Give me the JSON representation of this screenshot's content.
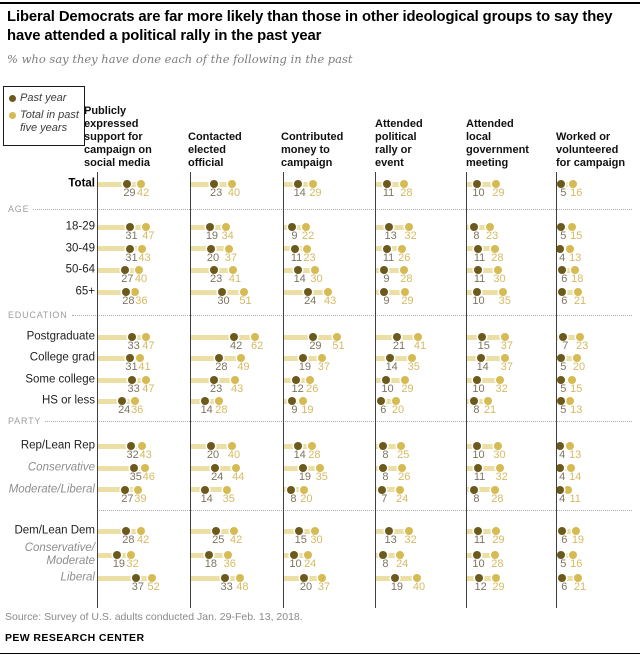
{
  "title": "Liberal Democrats are far more likely than those in other ideological groups to say they have attended a political rally in the past year",
  "subtitle": "% who say they have done each of the following in the past",
  "legend": {
    "past_year_label": "Past year",
    "past_five_label": "Total in past five years"
  },
  "colors": {
    "past_year_dot": "#6b5a1b",
    "past_five_dot": "#d6ba52",
    "range_bar": "#ecdfa6",
    "past_year_value_text": "#7e7560",
    "past_five_value_text": "#d5ba62",
    "axis": "#3f3f3f"
  },
  "chart_data": {
    "type": "scatter",
    "subtype": "dumbbell-dot-plot",
    "unit": "%",
    "series": [
      "Past year",
      "Total in past five years"
    ],
    "columns": [
      {
        "label": "Publicly expressed support for campaign on social media",
        "lines": [
          "Publicly",
          "expressed",
          "support for",
          "campaign on",
          "social media"
        ]
      },
      {
        "label": "Contacted elected official",
        "lines": [
          "Contacted",
          "elected",
          "official"
        ]
      },
      {
        "label": "Contributed money to campaign",
        "lines": [
          "Contributed",
          "money to",
          "campaign"
        ]
      },
      {
        "label": "Attended political rally or event",
        "lines": [
          "Attended",
          "political",
          "rally or",
          "event"
        ]
      },
      {
        "label": "Attended local government meeting",
        "lines": [
          "Attended",
          "local",
          "government",
          "meeting"
        ]
      },
      {
        "label": "Worked or volunteered for campaign",
        "lines": [
          "Worked or",
          "volunteered",
          "for campaign"
        ]
      }
    ],
    "xlim": [
      0,
      70
    ],
    "rows": [
      {
        "label": "Total",
        "style": "bold",
        "values": [
          [
            29,
            42
          ],
          [
            23,
            40
          ],
          [
            14,
            29
          ],
          [
            11,
            28
          ],
          [
            10,
            29
          ],
          [
            5,
            16
          ]
        ]
      },
      {
        "section": "AGE"
      },
      {
        "label": "18-29",
        "style": "plain",
        "values": [
          [
            31,
            47
          ],
          [
            19,
            34
          ],
          [
            9,
            22
          ],
          [
            13,
            32
          ],
          [
            8,
            23
          ],
          [
            5,
            15
          ]
        ]
      },
      {
        "label": "30-49",
        "style": "plain",
        "values": [
          [
            31,
            43
          ],
          [
            20,
            37
          ],
          [
            11,
            23
          ],
          [
            11,
            26
          ],
          [
            11,
            28
          ],
          [
            4,
            13
          ]
        ]
      },
      {
        "label": "50-64",
        "style": "plain",
        "values": [
          [
            27,
            40
          ],
          [
            23,
            41
          ],
          [
            14,
            30
          ],
          [
            9,
            28
          ],
          [
            11,
            30
          ],
          [
            6,
            18
          ]
        ]
      },
      {
        "label": "65+",
        "style": "plain",
        "values": [
          [
            28,
            36
          ],
          [
            30,
            51
          ],
          [
            24,
            43
          ],
          [
            9,
            29
          ],
          [
            10,
            35
          ],
          [
            6,
            21
          ]
        ]
      },
      {
        "section": "EDUCATION"
      },
      {
        "label": "Postgraduate",
        "style": "plain",
        "values": [
          [
            33,
            47
          ],
          [
            42,
            62
          ],
          [
            29,
            51
          ],
          [
            21,
            41
          ],
          [
            15,
            37
          ],
          [
            7,
            23
          ]
        ]
      },
      {
        "label": "College grad",
        "style": "plain",
        "values": [
          [
            31,
            41
          ],
          [
            28,
            49
          ],
          [
            19,
            37
          ],
          [
            14,
            35
          ],
          [
            14,
            37
          ],
          [
            5,
            20
          ]
        ]
      },
      {
        "label": "Some college",
        "style": "plain",
        "values": [
          [
            33,
            47
          ],
          [
            23,
            43
          ],
          [
            12,
            26
          ],
          [
            10,
            29
          ],
          [
            10,
            32
          ],
          [
            5,
            15
          ]
        ]
      },
      {
        "label": "HS or less",
        "style": "plain",
        "values": [
          [
            24,
            36
          ],
          [
            14,
            28
          ],
          [
            9,
            19
          ],
          [
            6,
            20
          ],
          [
            8,
            21
          ],
          [
            5,
            13
          ]
        ]
      },
      {
        "section": "PARTY"
      },
      {
        "label": "Rep/Lean Rep",
        "style": "plain",
        "values": [
          [
            32,
            43
          ],
          [
            20,
            40
          ],
          [
            14,
            28
          ],
          [
            8,
            25
          ],
          [
            10,
            30
          ],
          [
            4,
            13
          ]
        ]
      },
      {
        "label": "Conservative",
        "style": "italic",
        "values": [
          [
            35,
            46
          ],
          [
            24,
            44
          ],
          [
            19,
            35
          ],
          [
            8,
            26
          ],
          [
            11,
            32
          ],
          [
            4,
            14
          ]
        ]
      },
      {
        "label": "Moderate/Liberal",
        "style": "italic",
        "values": [
          [
            27,
            39
          ],
          [
            14,
            35
          ],
          [
            8,
            20
          ],
          [
            7,
            24
          ],
          [
            8,
            28
          ],
          [
            4,
            11
          ]
        ]
      },
      {
        "section": ""
      },
      {
        "label": "Dem/Lean Dem",
        "style": "plain",
        "values": [
          [
            28,
            42
          ],
          [
            25,
            42
          ],
          [
            15,
            30
          ],
          [
            13,
            32
          ],
          [
            11,
            29
          ],
          [
            6,
            19
          ]
        ]
      },
      {
        "label": "Conservative/Moderate",
        "style": "italic",
        "lines": [
          "Conservative/",
          "Moderate"
        ],
        "values": [
          [
            19,
            32
          ],
          [
            18,
            36
          ],
          [
            10,
            24
          ],
          [
            8,
            24
          ],
          [
            10,
            28
          ],
          [
            5,
            16
          ]
        ]
      },
      {
        "label": "Liberal",
        "style": "italic",
        "values": [
          [
            37,
            52
          ],
          [
            33,
            48
          ],
          [
            20,
            37
          ],
          [
            19,
            40
          ],
          [
            12,
            29
          ],
          [
            6,
            21
          ]
        ]
      }
    ]
  },
  "source": "Source: Survey of U.S. adults conducted Jan. 29-Feb. 13, 2018.",
  "footer": "PEW RESEARCH CENTER"
}
